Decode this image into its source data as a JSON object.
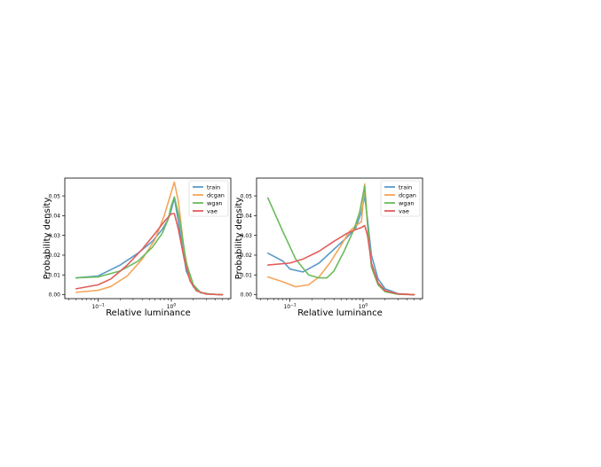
{
  "chart_data": [
    {
      "type": "line",
      "xlabel": "Relative luminance",
      "ylabel": "Probability density",
      "xscale": "log",
      "xlim": [
        0.035,
        6.5
      ],
      "ylim": [
        -0.002,
        0.059
      ],
      "xticks": [
        {
          "value": 0.1,
          "base": "10",
          "exp": "−1"
        },
        {
          "value": 1,
          "base": "10",
          "exp": "0"
        }
      ],
      "yticks": [
        0.0,
        0.01,
        0.02,
        0.03,
        0.04,
        0.05
      ],
      "ytick_labels": [
        "0.00",
        "0.01",
        "0.02",
        "0.03",
        "0.04",
        "0.05"
      ],
      "legend": "top-right",
      "grid": false,
      "series": [
        {
          "name": "train",
          "color": "#5b9bc8",
          "x": [
            0.05,
            0.1,
            0.2,
            0.35,
            0.55,
            0.75,
            0.9,
            1.0,
            1.1,
            1.3,
            1.6,
            2.0,
            2.5,
            3.5,
            5.0
          ],
          "y": [
            0.0085,
            0.0095,
            0.015,
            0.021,
            0.027,
            0.033,
            0.038,
            0.043,
            0.049,
            0.033,
            0.012,
            0.004,
            0.001,
            0.0002,
            0.0
          ]
        },
        {
          "name": "dcgan",
          "color": "#f5a55a",
          "x": [
            0.05,
            0.1,
            0.15,
            0.25,
            0.4,
            0.6,
            0.8,
            1.0,
            1.1,
            1.25,
            1.5,
            1.8,
            2.2,
            3.0,
            5.0
          ],
          "y": [
            0.0012,
            0.0022,
            0.0042,
            0.0095,
            0.018,
            0.028,
            0.04,
            0.052,
            0.057,
            0.047,
            0.022,
            0.008,
            0.002,
            0.0003,
            0.0
          ]
        },
        {
          "name": "wgan",
          "color": "#6aba5c",
          "x": [
            0.05,
            0.1,
            0.2,
            0.35,
            0.55,
            0.75,
            0.9,
            1.0,
            1.1,
            1.3,
            1.6,
            2.0,
            2.5,
            3.5,
            5.0
          ],
          "y": [
            0.0085,
            0.009,
            0.012,
            0.017,
            0.024,
            0.031,
            0.038,
            0.045,
            0.0495,
            0.038,
            0.016,
            0.005,
            0.0012,
            0.0002,
            0.0
          ]
        },
        {
          "name": "vae",
          "color": "#e25c5c",
          "x": [
            0.05,
            0.1,
            0.15,
            0.25,
            0.4,
            0.6,
            0.8,
            1.0,
            1.1,
            1.25,
            1.5,
            1.8,
            2.2,
            3.0,
            5.0
          ],
          "y": [
            0.003,
            0.005,
            0.008,
            0.015,
            0.023,
            0.031,
            0.037,
            0.041,
            0.041,
            0.033,
            0.018,
            0.007,
            0.002,
            0.0003,
            0.0
          ]
        }
      ]
    },
    {
      "type": "line",
      "xlabel": "Relative luminance",
      "ylabel": "Probability density",
      "xscale": "log",
      "xlim": [
        0.035,
        6.5
      ],
      "ylim": [
        -0.002,
        0.059
      ],
      "xticks": [
        {
          "value": 0.1,
          "base": "10",
          "exp": "−1"
        },
        {
          "value": 1,
          "base": "10",
          "exp": "0"
        }
      ],
      "yticks": [
        0.0,
        0.01,
        0.02,
        0.03,
        0.04,
        0.05
      ],
      "ytick_labels": [
        "0.00",
        "0.01",
        "0.02",
        "0.03",
        "0.04",
        "0.05"
      ],
      "legend": "top-right",
      "grid": false,
      "series": [
        {
          "name": "train",
          "color": "#5b9bc8",
          "x": [
            0.05,
            0.08,
            0.1,
            0.15,
            0.25,
            0.4,
            0.6,
            0.8,
            0.95,
            1.05,
            1.15,
            1.3,
            1.6,
            2.0,
            3.0,
            5.0
          ],
          "y": [
            0.021,
            0.017,
            0.013,
            0.0115,
            0.016,
            0.023,
            0.029,
            0.034,
            0.042,
            0.05,
            0.038,
            0.02,
            0.008,
            0.003,
            0.0005,
            0.0
          ]
        },
        {
          "name": "dcgan",
          "color": "#f5a55a",
          "x": [
            0.05,
            0.08,
            0.12,
            0.18,
            0.25,
            0.35,
            0.5,
            0.65,
            0.8,
            0.95,
            1.05,
            1.15,
            1.3,
            1.6,
            2.0,
            3.0,
            5.0
          ],
          "y": [
            0.009,
            0.0065,
            0.004,
            0.005,
            0.009,
            0.016,
            0.025,
            0.032,
            0.035,
            0.037,
            0.056,
            0.035,
            0.015,
            0.006,
            0.002,
            0.0004,
            0.0
          ]
        },
        {
          "name": "wgan",
          "color": "#6aba5c",
          "x": [
            0.05,
            0.08,
            0.12,
            0.18,
            0.25,
            0.32,
            0.4,
            0.55,
            0.75,
            0.9,
            1.05,
            1.15,
            1.3,
            1.6,
            2.0,
            3.0,
            5.0
          ],
          "y": [
            0.049,
            0.032,
            0.018,
            0.01,
            0.0085,
            0.0085,
            0.012,
            0.022,
            0.033,
            0.042,
            0.055,
            0.036,
            0.014,
            0.005,
            0.0015,
            0.0002,
            0.0
          ]
        },
        {
          "name": "vae",
          "color": "#e25c5c",
          "x": [
            0.05,
            0.1,
            0.15,
            0.25,
            0.4,
            0.6,
            0.8,
            0.95,
            1.05,
            1.15,
            1.3,
            1.6,
            2.0,
            3.0,
            5.0
          ],
          "y": [
            0.015,
            0.016,
            0.018,
            0.022,
            0.027,
            0.031,
            0.033,
            0.034,
            0.035,
            0.03,
            0.016,
            0.006,
            0.002,
            0.0004,
            0.0
          ]
        }
      ]
    }
  ]
}
